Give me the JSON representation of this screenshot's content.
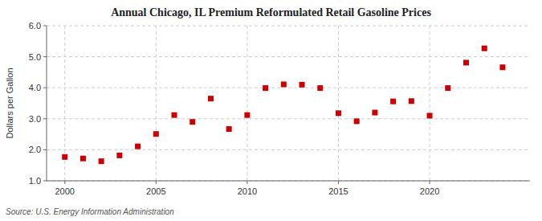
{
  "chart_data": {
    "type": "scatter",
    "title": "Annual Chicago, IL Premium Reformulated Retail Gasoline Prices",
    "y_label": "Dollars per Gallon",
    "source": "Source: U.S. Energy Information Administration",
    "x": [
      2000,
      2001,
      2002,
      2003,
      2004,
      2005,
      2006,
      2007,
      2008,
      2009,
      2010,
      2011,
      2012,
      2013,
      2014,
      2015,
      2016,
      2017,
      2018,
      2019,
      2020,
      2021,
      2022,
      2023,
      2024
    ],
    "values": [
      1.77,
      1.72,
      1.63,
      1.82,
      2.11,
      2.51,
      3.12,
      2.9,
      3.65,
      2.67,
      3.12,
      3.99,
      4.11,
      4.1,
      3.99,
      3.18,
      2.92,
      3.2,
      3.56,
      3.57,
      3.1,
      3.99,
      4.81,
      5.27,
      4.66
    ],
    "color": "#cc0000",
    "marker": "square",
    "xlim": [
      1999.0,
      2025.5
    ],
    "xticks": [
      2000,
      2005,
      2010,
      2015,
      2020
    ],
    "ylim": [
      1.0,
      6.0
    ],
    "yticks": [
      {
        "value": 1.0,
        "label": "1.0"
      },
      {
        "value": 2.0,
        "label": "2.0"
      },
      {
        "value": 3.0,
        "label": "3.0"
      },
      {
        "value": 4.0,
        "label": "4.0"
      },
      {
        "value": 5.0,
        "label": "5.0"
      },
      {
        "value": 6.0,
        "label": "6.0"
      }
    ],
    "grid": true
  }
}
